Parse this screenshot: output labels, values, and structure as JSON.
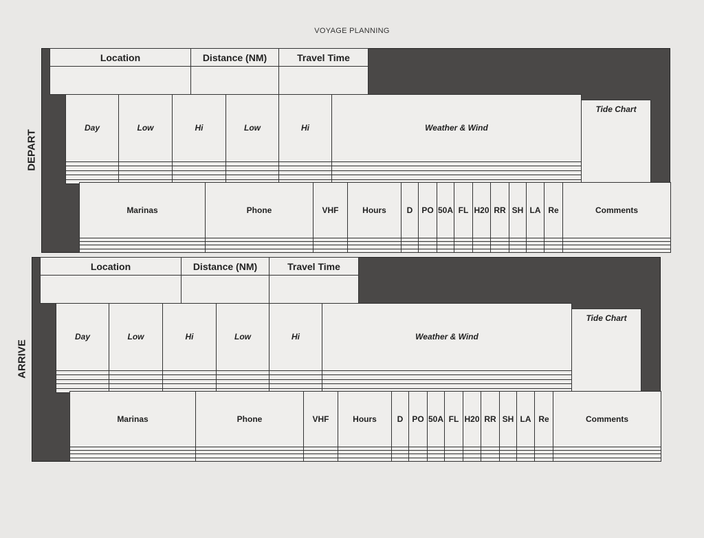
{
  "title": "VOYAGE PLANNING",
  "sections": [
    {
      "label": "DEPART",
      "route_headers": [
        "Location",
        "Distance (NM)",
        "Travel Time"
      ],
      "weather_headers": [
        "Day",
        "Low",
        "Hi",
        "Low",
        "Hi",
        "Weather & Wind"
      ],
      "tide_chart": "Tide Chart",
      "marina_headers": [
        "Marinas",
        "Phone",
        "VHF",
        "Hours",
        "D",
        "PO",
        "50A",
        "FL",
        "H20",
        "RR",
        "SH",
        "LA",
        "Re",
        "Comments"
      ]
    },
    {
      "label": "ARRIVE",
      "route_headers": [
        "Location",
        "Distance (NM)",
        "Travel Time"
      ],
      "weather_headers": [
        "Day",
        "Low",
        "Hi",
        "Low",
        "Hi",
        "Weather & Wind"
      ],
      "tide_chart": "Tide Chart",
      "marina_headers": [
        "Marinas",
        "Phone",
        "VHF",
        "Hours",
        "D",
        "PO",
        "50A",
        "FL",
        "H20",
        "RR",
        "SH",
        "LA",
        "Re",
        "Comments"
      ]
    }
  ],
  "colors": {
    "paper": "#e9e8e6",
    "dark_fill": "#4a4847",
    "cell": "#efeeec"
  }
}
